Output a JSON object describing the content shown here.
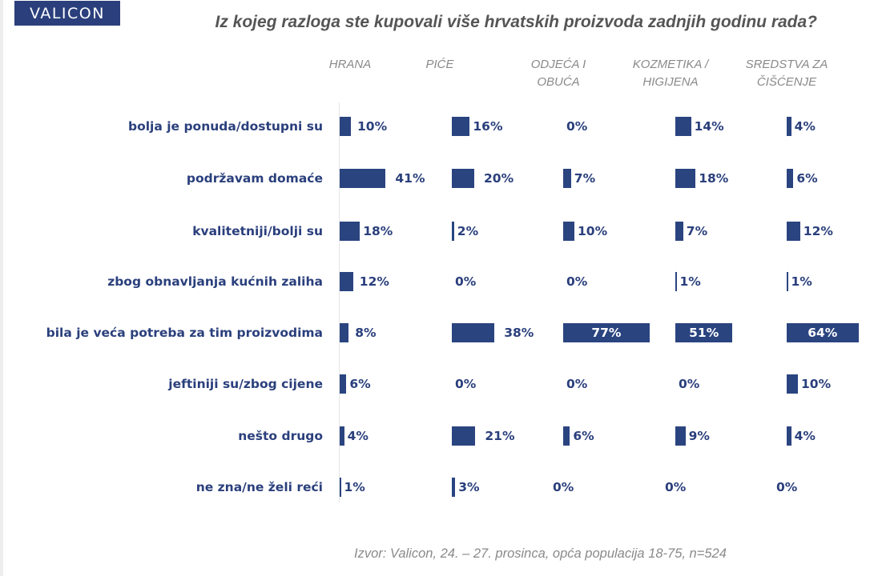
{
  "logo": {
    "text": "VALICON"
  },
  "colors": {
    "brand": "#2a3f7c",
    "bar": "#2a4480",
    "header_gray": "#8a8a8a"
  },
  "chart_data": {
    "type": "bar",
    "orientation": "horizontal",
    "title": "Iz kojeg razloga ste kupovali više hrvatskih proizvoda zadnjih godinu rada?",
    "source": "Izvor: Valicon, 24. – 27. prosinca, opća populacija 18-75, n=524",
    "unit": "%",
    "categories": [
      "bolja je ponuda/dostupni su",
      "podržavam domaće",
      "kvalitetniji/bolji su",
      "zbog obnavljanja kućnih zaliha",
      "bila je veća potreba za tim proizvodima",
      "jeftiniji su/zbog cijene",
      "nešto drugo",
      "ne zna/ne želi reći"
    ],
    "series": [
      {
        "name": "HRANA",
        "header_lines": [
          "HRANA",
          ""
        ],
        "values": [
          10,
          41,
          18,
          12,
          8,
          6,
          4,
          1
        ]
      },
      {
        "name": "PIĆE",
        "header_lines": [
          "PIĆE",
          ""
        ],
        "values": [
          16,
          20,
          2,
          0,
          38,
          0,
          21,
          3
        ]
      },
      {
        "name": "ODJEĆA I OBUĆA",
        "header_lines": [
          "ODJEĆA I",
          "OBUĆA"
        ],
        "values": [
          0,
          7,
          10,
          0,
          77,
          0,
          6,
          0
        ]
      },
      {
        "name": "KOZMETIKA / HIGIJENA",
        "header_lines": [
          "KOZMETIKA /",
          "HIGIJENA"
        ],
        "values": [
          14,
          18,
          7,
          1,
          51,
          0,
          9,
          0
        ]
      },
      {
        "name": "SREDSTVA ZA ČIŠĆENJE",
        "header_lines": [
          "SREDSTVA ZA",
          "ČIŠĆENJE"
        ],
        "values": [
          4,
          6,
          12,
          1,
          64,
          10,
          4,
          0
        ]
      }
    ],
    "labels": [
      [
        "10%",
        "41%",
        "18%",
        "12%",
        "8%",
        "6%",
        "4%",
        "1%"
      ],
      [
        "16%",
        "20%",
        "2%",
        "0%",
        "38%",
        "0%",
        "21%",
        "3%"
      ],
      [
        "0%",
        "7%",
        "10%",
        "0%",
        "77%",
        "0%",
        "6%",
        "0%"
      ],
      [
        "14%",
        "18%",
        "7%",
        "1%",
        "51%",
        "0%",
        "9%",
        "0%"
      ],
      [
        "4%",
        "6%",
        "12%",
        "1%",
        "64%",
        "10%",
        "4%",
        "0%"
      ]
    ],
    "xlim": [
      0,
      100
    ],
    "grid": false,
    "legend": "none"
  }
}
